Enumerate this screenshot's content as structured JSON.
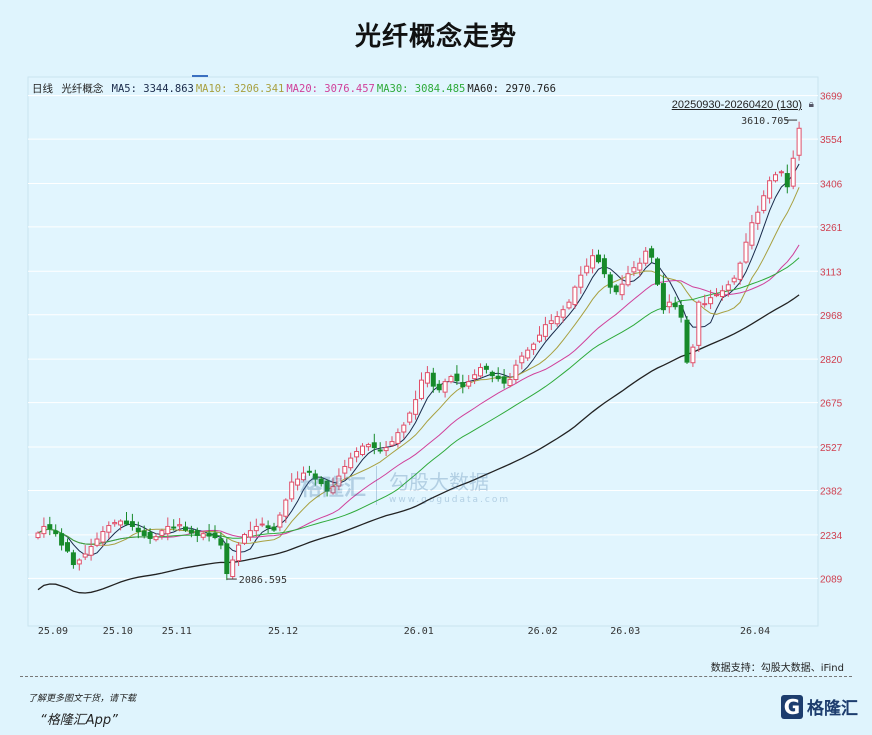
{
  "title": "光纤概念走势",
  "legend": {
    "period": "日线",
    "name": "光纤概念",
    "items": [
      {
        "label": "MA5:",
        "value": "3344.863",
        "color": "#1a2a4a"
      },
      {
        "label": "MA10:",
        "value": "3206.341",
        "color": "#a8a040"
      },
      {
        "label": "MA20:",
        "value": "3076.457",
        "color": "#d0409a"
      },
      {
        "label": "MA30:",
        "value": "3084.485",
        "color": "#2faa3a"
      },
      {
        "label": "MA60:",
        "value": "2970.766",
        "color": "#222222"
      }
    ]
  },
  "range_label": "20250930-20260420 (130)",
  "lock_icon": "lock-icon",
  "watermark": {
    "brand": "格隆汇",
    "data": "勾股大数据",
    "url": "www.gogudata.com"
  },
  "source": "数据支持：勾股大数据、iFind",
  "promo": {
    "line1": "了解更多图文干货，请下载",
    "line2": "“格隆汇App”"
  },
  "logo": {
    "mark": "G",
    "text": "格隆汇"
  },
  "chart_data": {
    "type": "candlestick",
    "title": "光纤概念走势",
    "ylim": [
      1930,
      3761
    ],
    "y_ticks": [
      3699,
      3554,
      3406,
      3261,
      3113,
      2968,
      2820,
      2675,
      2527,
      2382,
      2234,
      2089
    ],
    "x_ticks": [
      {
        "index": 1,
        "label": "25.09"
      },
      {
        "index": 12,
        "label": "25.10"
      },
      {
        "index": 22,
        "label": "25.11"
      },
      {
        "index": 40,
        "label": "25.12"
      },
      {
        "index": 63,
        "label": "26.01"
      },
      {
        "index": 84,
        "label": "26.02"
      },
      {
        "index": 98,
        "label": "26.03"
      },
      {
        "index": 120,
        "label": "26.04"
      }
    ],
    "annotations": [
      {
        "index": 32,
        "value": 2086.595,
        "label": "2086.595"
      },
      {
        "index": 129,
        "value": 3610.705,
        "label": "3610.705"
      }
    ],
    "grid": true,
    "close": [
      2240,
      2262,
      2255,
      2238,
      2200,
      2180,
      2135,
      2150,
      2170,
      2195,
      2220,
      2245,
      2265,
      2275,
      2280,
      2270,
      2262,
      2245,
      2232,
      2222,
      2228,
      2248,
      2262,
      2258,
      2268,
      2250,
      2240,
      2232,
      2238,
      2230,
      2225,
      2200,
      2105,
      2150,
      2200,
      2235,
      2248,
      2262,
      2270,
      2258,
      2250,
      2300,
      2350,
      2410,
      2420,
      2440,
      2445,
      2420,
      2405,
      2380,
      2395,
      2430,
      2462,
      2490,
      2512,
      2530,
      2535,
      2525,
      2515,
      2525,
      2545,
      2575,
      2600,
      2640,
      2685,
      2750,
      2775,
      2730,
      2718,
      2745,
      2762,
      2748,
      2728,
      2745,
      2768,
      2792,
      2786,
      2765,
      2755,
      2740,
      2752,
      2800,
      2830,
      2850,
      2870,
      2900,
      2935,
      2948,
      2962,
      2985,
      3010,
      3060,
      3100,
      3130,
      3165,
      3145,
      3105,
      3060,
      3045,
      3070,
      3105,
      3125,
      3140,
      3180,
      3160,
      3070,
      2985,
      3010,
      2995,
      2960,
      2810,
      2860,
      3010,
      3005,
      3025,
      3035,
      3048,
      3068,
      3090,
      3140,
      3210,
      3275,
      3310,
      3365,
      3415,
      3435,
      3445,
      3395,
      3490,
      3590
    ],
    "ma_periods": [
      5,
      10,
      20,
      30,
      60
    ]
  }
}
